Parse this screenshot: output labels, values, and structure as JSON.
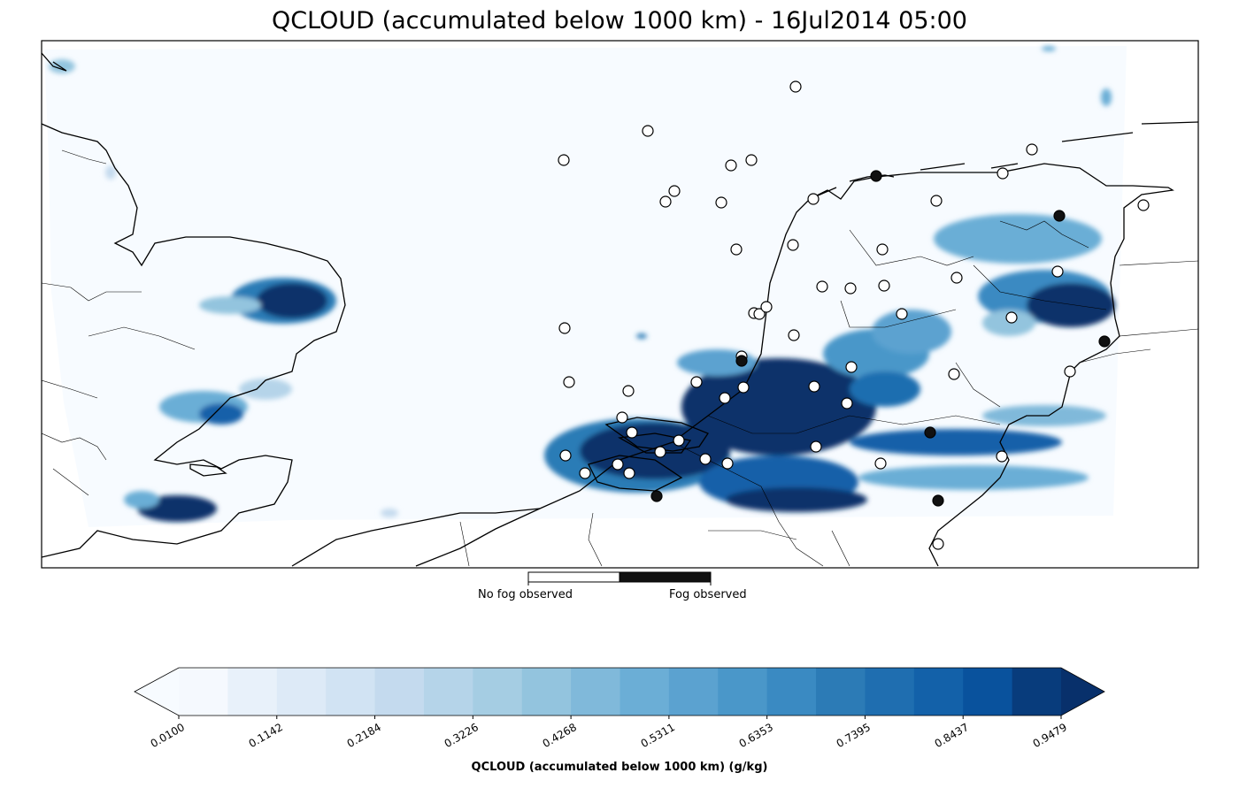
{
  "title": "QCLOUD (accumulated below 1000 km) - 16Jul2014 05:00",
  "fog_legend": {
    "no_fog_label": "No fog observed",
    "fog_label": "Fog observed",
    "no_fog_color": "#ffffff",
    "fog_color": "#111111"
  },
  "colorbar": {
    "label": "QCLOUD (accumulated below 1000 km) (g/kg)",
    "ticks": [
      "0.0100",
      "0.1142",
      "0.2184",
      "0.3226",
      "0.4268",
      "0.5311",
      "0.6353",
      "0.7395",
      "0.8437",
      "0.9479"
    ],
    "colors": [
      "#f5f9fe",
      "#e8f1fa",
      "#ddeaf7",
      "#d1e3f3",
      "#c4daee",
      "#b5d4e9",
      "#a5cde3",
      "#93c4de",
      "#80b9da",
      "#6baed6",
      "#5ba2d0",
      "#4a97c9",
      "#3a8ac2",
      "#2c7bb6",
      "#1f6eb0",
      "#1361a9",
      "#09529d",
      "#083c7c"
    ],
    "over_color": "#08306b",
    "under_color": "#f7fbff"
  },
  "land_outline_color": "#000000",
  "colors": {
    "field_background": "#f7fbff",
    "cloud_light": "#b5d4e9",
    "cloud_mid": "#5ba2d0",
    "cloud_dark": "#08306b"
  },
  "stations_icon": "circle-marker"
}
